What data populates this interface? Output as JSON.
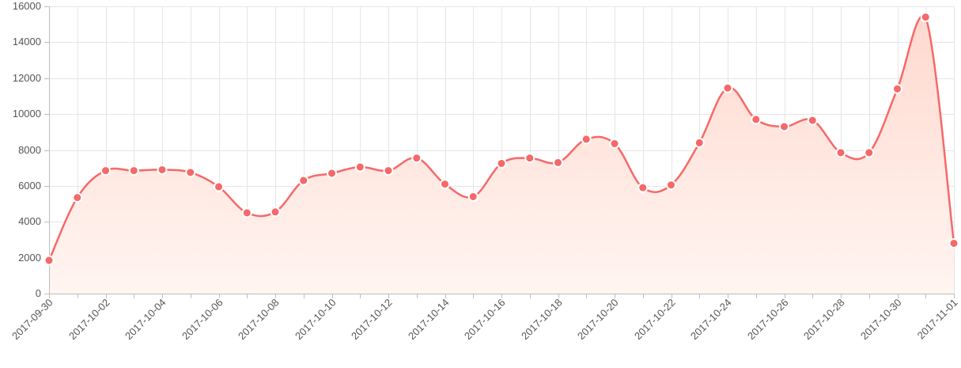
{
  "chart_data": {
    "type": "area",
    "title": "",
    "xlabel": "",
    "ylabel": "",
    "ylim": [
      0,
      16000
    ],
    "y_ticks": [
      0,
      2000,
      4000,
      6000,
      8000,
      10000,
      12000,
      14000,
      16000
    ],
    "grid": true,
    "line_color": "#f76868",
    "fill_color_top": "#ffd9cf",
    "fill_color_bottom": "#fff5f1",
    "point_color": "#f76868",
    "point_border_color": "#ffffff",
    "x": [
      "2017-09-30",
      "2017-10-01",
      "2017-10-02",
      "2017-10-03",
      "2017-10-04",
      "2017-10-05",
      "2017-10-06",
      "2017-10-07",
      "2017-10-08",
      "2017-10-09",
      "2017-10-10",
      "2017-10-11",
      "2017-10-12",
      "2017-10-13",
      "2017-10-14",
      "2017-10-15",
      "2017-10-16",
      "2017-10-17",
      "2017-10-18",
      "2017-10-19",
      "2017-10-20",
      "2017-10-21",
      "2017-10-22",
      "2017-10-23",
      "2017-10-24",
      "2017-10-25",
      "2017-10-26",
      "2017-10-27",
      "2017-10-28",
      "2017-10-29",
      "2017-10-30",
      "2017-10-31",
      "2017-11-01"
    ],
    "x_tick_labels": [
      "2017-09-30",
      "2017-10-02",
      "2017-10-04",
      "2017-10-06",
      "2017-10-08",
      "2017-10-10",
      "2017-10-12",
      "2017-10-14",
      "2017-10-16",
      "2017-10-18",
      "2017-10-20",
      "2017-10-22",
      "2017-10-24",
      "2017-10-26",
      "2017-10-28",
      "2017-10-30",
      "2017-11-01"
    ],
    "series": [
      {
        "values": [
          1850,
          5350,
          6850,
          6850,
          6900,
          6750,
          5950,
          4500,
          4550,
          6300,
          6700,
          7050,
          6850,
          7550,
          6100,
          5400,
          7250,
          7550,
          7300,
          8600,
          8350,
          5900,
          6050,
          8400,
          11450,
          9700,
          9300,
          9650,
          7850,
          7850,
          11400,
          15400,
          2800
        ]
      }
    ]
  }
}
